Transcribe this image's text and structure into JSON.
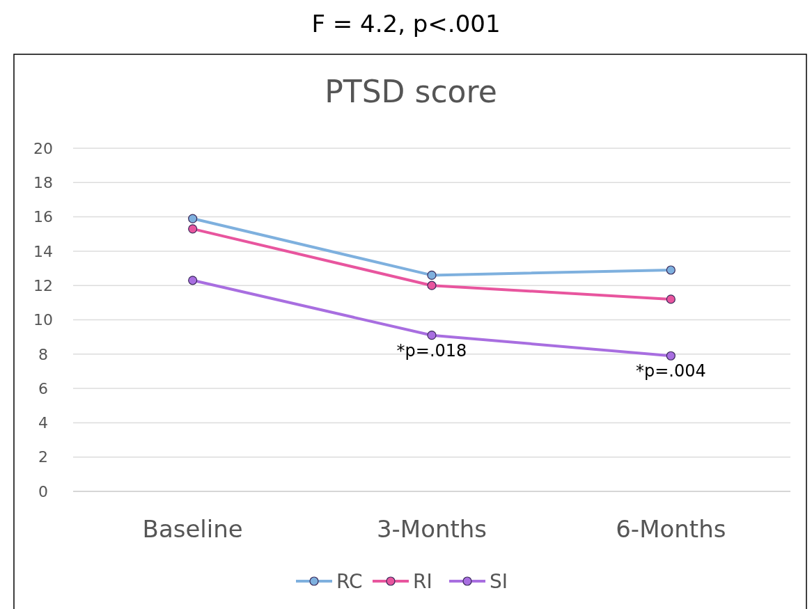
{
  "chart_data": {
    "type": "line",
    "title": "PTSD score",
    "categories": [
      "Baseline",
      "3-Months",
      "6-Months"
    ],
    "series": [
      {
        "name": "RC",
        "color": "#7eb0de",
        "values": [
          15.9,
          12.6,
          12.9
        ]
      },
      {
        "name": "RI",
        "color": "#e8559e",
        "values": [
          15.3,
          12.0,
          11.2
        ]
      },
      {
        "name": "SI",
        "color": "#a86ee0",
        "values": [
          12.3,
          9.1,
          7.9
        ]
      }
    ],
    "ylim": [
      0,
      20
    ],
    "yticks": [
      0,
      2,
      4,
      6,
      8,
      10,
      12,
      14,
      16,
      18,
      20
    ],
    "grid": "y",
    "legend": "bottom",
    "marker": "circle",
    "line_style": "solid",
    "annotations": [
      "F = 4.2, p<.001",
      {
        "text": "*p=.018",
        "x": "3-Months",
        "y": 9.1
      },
      {
        "text": "*p=.004",
        "x": "6-Months",
        "y": 7.9
      }
    ]
  }
}
